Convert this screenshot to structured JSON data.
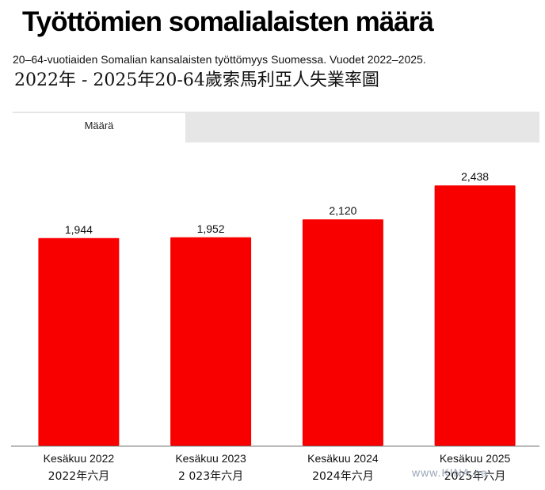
{
  "header": {
    "title": "Työttömien somalialaisten määrä",
    "subtitle": "20–64-vuotiaiden Somalian kansalaisten työttömyys Suomessa. Vuodet 2022–2025.",
    "subtitle_zh": "2022年 - 2025年20-64歲索馬利亞人失業率圖"
  },
  "tabs": [
    {
      "label": "Määrä",
      "active": true
    }
  ],
  "watermark": "www.KINA.ca",
  "colors": {
    "bar": "#f90000",
    "axis": "#666666"
  },
  "chart_data": {
    "type": "bar",
    "title": "Työttömien somalialaisten määrä",
    "categories": [
      "Kesäkuu 2022",
      "Kesäkuu 2023",
      "Kesäkuu 2024",
      "Kesäkuu 2025"
    ],
    "categories_zh": [
      "2022年六月",
      "2 023年六月",
      "2024年六月",
      "2025年六月"
    ],
    "values": [
      1944,
      1952,
      2120,
      2438
    ],
    "value_labels": [
      "1,944",
      "1,952",
      "2,120",
      "2,438"
    ],
    "ylim": [
      0,
      2840
    ],
    "xlabel": "",
    "ylabel": "",
    "grid": false
  }
}
